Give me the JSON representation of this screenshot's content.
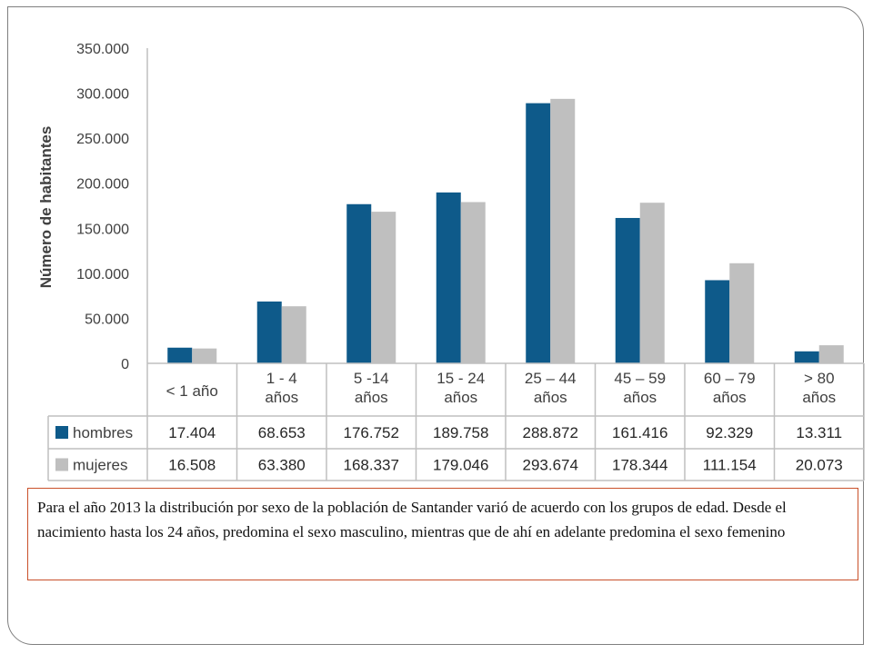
{
  "chart_data": {
    "type": "bar",
    "ylabel": "Número de habitantes",
    "ylim": [
      0,
      350000
    ],
    "yticks": [
      "0",
      "50.000",
      "100.000",
      "150.000",
      "200.000",
      "250.000",
      "300.000",
      "350.000"
    ],
    "categories": [
      [
        "< 1 año"
      ],
      [
        "1 - 4",
        "años"
      ],
      [
        "5 -14",
        "años"
      ],
      [
        "15 - 24",
        "años"
      ],
      [
        "25 – 44",
        "años"
      ],
      [
        "45 – 59",
        "años"
      ],
      [
        "60 – 79",
        "años"
      ],
      [
        "> 80",
        "años"
      ]
    ],
    "series": [
      {
        "name": "hombres",
        "color": "#0e5a8a",
        "values": [
          17404,
          68653,
          176752,
          189758,
          288872,
          161416,
          92329,
          13311
        ],
        "labels": [
          "17.404",
          "68.653",
          "176.752",
          "189.758",
          "288.872",
          "161.416",
          "92.329",
          "13.311"
        ]
      },
      {
        "name": "mujeres",
        "color": "#bfbfbf",
        "values": [
          16508,
          63380,
          168337,
          179046,
          293674,
          178344,
          111154,
          20073
        ],
        "labels": [
          "16.508",
          "63.380",
          "168.337",
          "179.046",
          "293.674",
          "178.344",
          "111.154",
          "20.073"
        ]
      }
    ],
    "grid": false,
    "legend": "table-bottom"
  },
  "caption": {
    "text": "Para el año 2013 la distribución por sexo de la población de Santander varió de acuerdo con los grupos de edad. Desde el nacimiento hasta los 24 años, predomina el sexo masculino, mientras que de ahí en adelante predomina el sexo femenino"
  }
}
